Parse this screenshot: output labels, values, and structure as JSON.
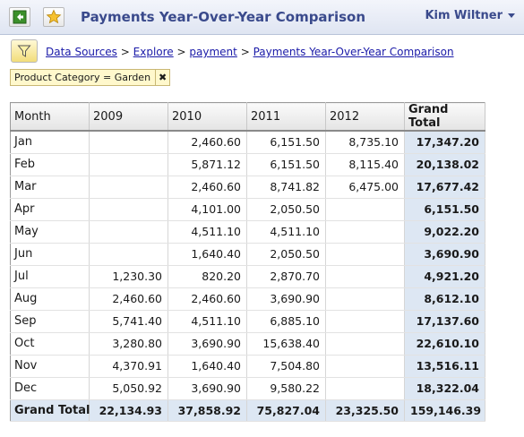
{
  "header": {
    "title": "Payments Year-Over-Year Comparison",
    "user": "Kim Wiltner",
    "icons": [
      "back-icon",
      "star-icon",
      "chevron-down-icon"
    ]
  },
  "breadcrumb": {
    "items": [
      "Data Sources",
      "Explore",
      "payment",
      "Payments Year-Over-Year Comparison"
    ],
    "separator": ">"
  },
  "filter": {
    "chip_label": "Product Category = Garden",
    "remove_glyph": "✖",
    "icon": "filter-icon"
  },
  "table": {
    "columns": [
      "Month",
      "2009",
      "2010",
      "2011",
      "2012",
      "Grand Total"
    ],
    "rows": [
      [
        "Jan",
        "",
        "2,460.60",
        "6,151.50",
        "8,735.10",
        "17,347.20"
      ],
      [
        "Feb",
        "",
        "5,871.12",
        "6,151.50",
        "8,115.40",
        "20,138.02"
      ],
      [
        "Mar",
        "",
        "2,460.60",
        "8,741.82",
        "6,475.00",
        "17,677.42"
      ],
      [
        "Apr",
        "",
        "4,101.00",
        "2,050.50",
        "",
        "6,151.50"
      ],
      [
        "May",
        "",
        "4,511.10",
        "4,511.10",
        "",
        "9,022.20"
      ],
      [
        "Jun",
        "",
        "1,640.40",
        "2,050.50",
        "",
        "3,690.90"
      ],
      [
        "Jul",
        "1,230.30",
        "820.20",
        "2,870.70",
        "",
        "4,921.20"
      ],
      [
        "Aug",
        "2,460.60",
        "2,460.60",
        "3,690.90",
        "",
        "8,612.10"
      ],
      [
        "Sep",
        "5,741.40",
        "4,511.10",
        "6,885.10",
        "",
        "17,137.60"
      ],
      [
        "Oct",
        "3,280.80",
        "3,690.90",
        "15,638.40",
        "",
        "22,610.10"
      ],
      [
        "Nov",
        "4,370.91",
        "1,640.40",
        "7,504.80",
        "",
        "13,516.11"
      ],
      [
        "Dec",
        "5,050.92",
        "3,690.90",
        "9,580.22",
        "",
        "18,322.04"
      ]
    ],
    "total": [
      "Grand Total",
      "22,134.93",
      "37,858.92",
      "75,827.04",
      "23,325.50",
      "159,146.39"
    ]
  },
  "colors": {
    "title": "#3a4a8c",
    "link": "#1a1aa8",
    "grand_total_bg": "#dde7f3",
    "chip_bg": "#fff8cc"
  }
}
